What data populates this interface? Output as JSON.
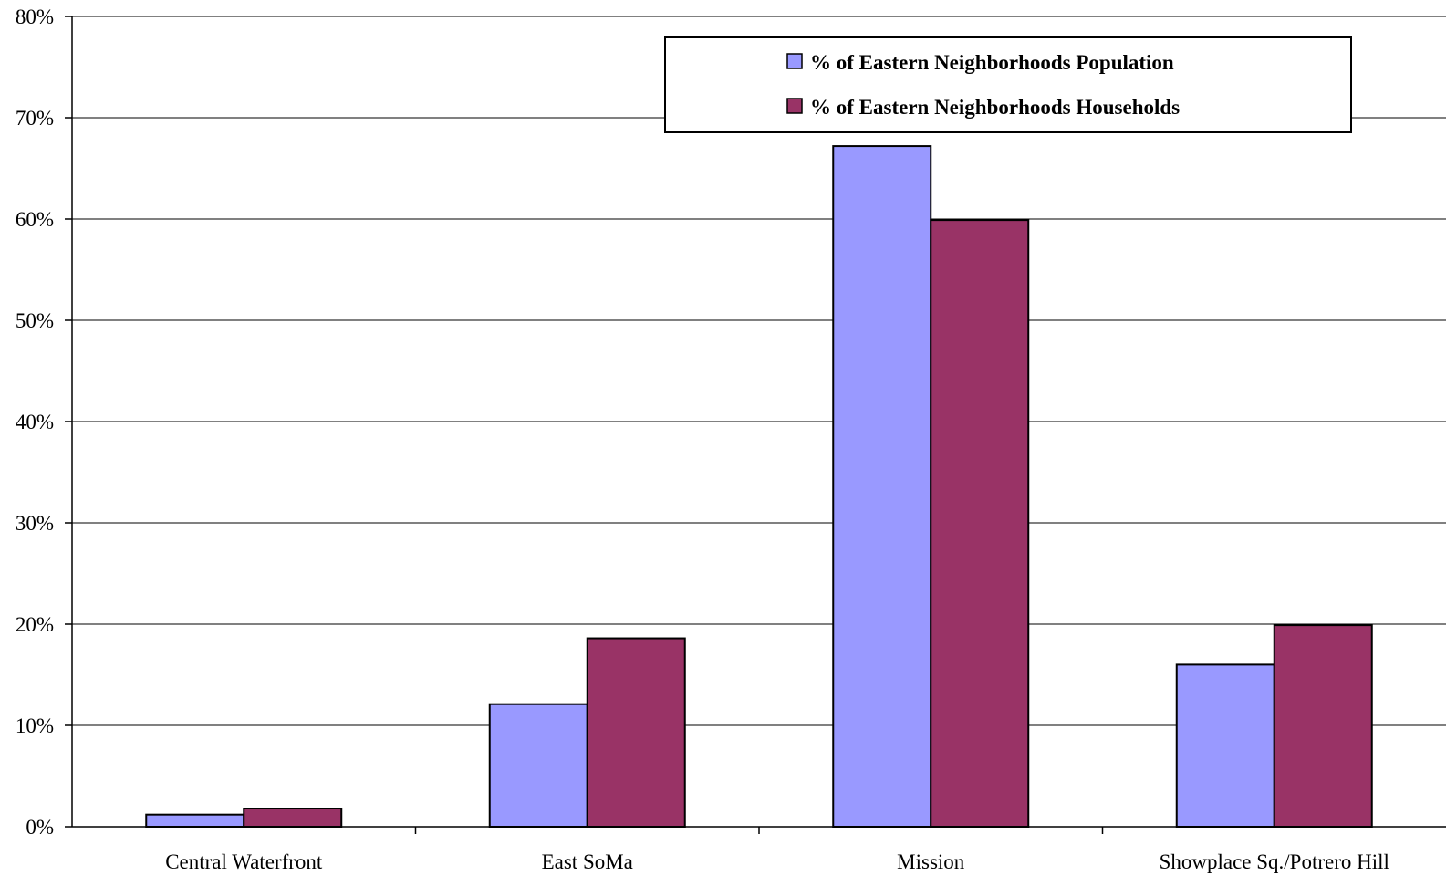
{
  "chart_data": {
    "type": "bar",
    "title": "",
    "xlabel": "",
    "ylabel": "",
    "ylim": [
      0,
      0.8
    ],
    "y_ticks": [
      "0%",
      "10%",
      "20%",
      "30%",
      "40%",
      "50%",
      "60%",
      "70%",
      "80%"
    ],
    "y_tick_values": [
      0,
      0.1,
      0.2,
      0.3,
      0.4,
      0.5,
      0.6,
      0.7,
      0.8
    ],
    "grid": true,
    "legend_position": "top-right",
    "categories": [
      "Central Waterfront",
      "East SoMa",
      "Mission",
      "Showplace Sq./Potrero Hill"
    ],
    "series": [
      {
        "name": "% of Eastern Neighborhoods Population",
        "color": "#9999ff",
        "values": [
          0.012,
          0.121,
          0.672,
          0.16
        ]
      },
      {
        "name": "% of Eastern Neighborhoods Households",
        "color": "#993366",
        "values": [
          0.018,
          0.186,
          0.599,
          0.199
        ]
      }
    ]
  }
}
